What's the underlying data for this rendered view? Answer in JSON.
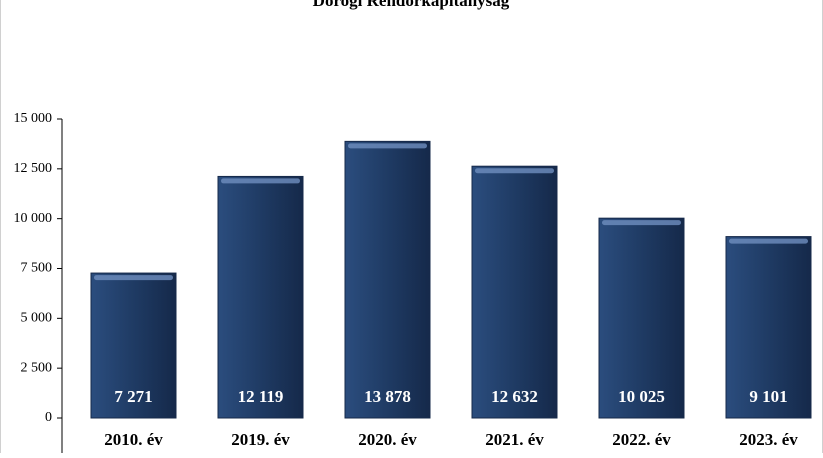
{
  "chart_data": {
    "type": "bar",
    "title": "Dorogi Rendőrkapitányság",
    "categories": [
      "2010. év",
      "2019. év",
      "2020. év",
      "2021. év",
      "2022. év",
      "2023. év"
    ],
    "values": [
      7271,
      12119,
      13878,
      12632,
      10025,
      9101
    ],
    "value_labels": [
      "7 271",
      "12 119",
      "13 878",
      "12 632",
      "10 025",
      "9 101"
    ],
    "color": "#1f3b64",
    "ylim": [
      0,
      15000
    ],
    "yticks": [
      0,
      {
        "value": 2500,
        "label": "2 500"
      },
      {
        "value": 5000,
        "label": "5 000"
      },
      {
        "value": 7500,
        "label": "7 500"
      },
      {
        "value": 10000,
        "label": "10 000"
      },
      {
        "value": 12500,
        "label": "12 500"
      },
      {
        "value": 15000,
        "label": "15 000"
      }
    ],
    "grid": false
  }
}
